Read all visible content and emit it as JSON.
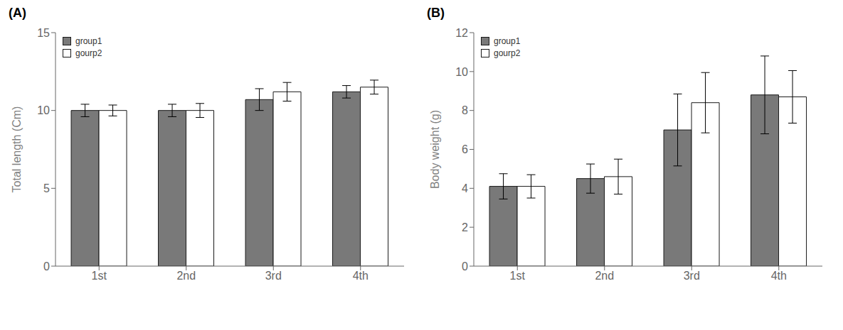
{
  "chart_data": [
    {
      "type": "bar",
      "title": "(A)",
      "categories": [
        "1st",
        "2nd",
        "3rd",
        "4th"
      ],
      "series": [
        {
          "name": "group1",
          "color": "#797979",
          "values": [
            10.0,
            10.0,
            10.7,
            11.2
          ],
          "errors": [
            0.4,
            0.4,
            0.7,
            0.4
          ]
        },
        {
          "name": "gourp2",
          "color": "#ffffff",
          "values": [
            10.0,
            10.0,
            11.2,
            11.5
          ],
          "errors": [
            0.35,
            0.45,
            0.6,
            0.45
          ]
        }
      ],
      "ylabel": "Total length (Cm)",
      "ylim": [
        0,
        15
      ],
      "yticks": [
        0,
        5,
        10,
        15
      ],
      "legend": "upper left",
      "grid": false
    },
    {
      "type": "bar",
      "title": "(B)",
      "categories": [
        "1st",
        "2nd",
        "3rd",
        "4th"
      ],
      "series": [
        {
          "name": "group1",
          "color": "#797979",
          "values": [
            4.1,
            4.5,
            7.0,
            8.8
          ],
          "errors": [
            0.65,
            0.75,
            1.85,
            2.0
          ]
        },
        {
          "name": "gourp2",
          "color": "#ffffff",
          "values": [
            4.1,
            4.6,
            8.4,
            8.7
          ],
          "errors": [
            0.6,
            0.9,
            1.55,
            1.35
          ]
        }
      ],
      "ylabel": "Body weight (g)",
      "ylim": [
        0,
        12
      ],
      "yticks": [
        0,
        2,
        4,
        6,
        8,
        10,
        12
      ],
      "legend": "upper left",
      "grid": false
    }
  ]
}
